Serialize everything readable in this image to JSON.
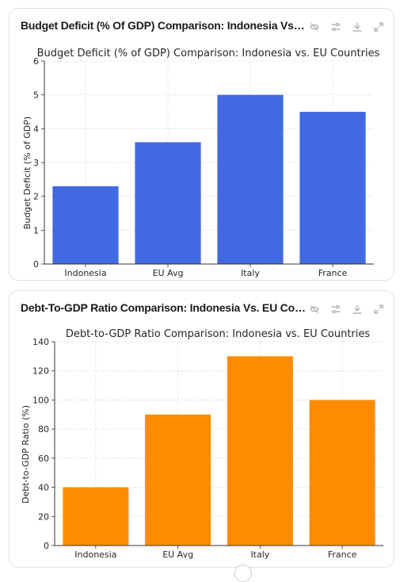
{
  "cards": [
    {
      "header_title": "Budget Deficit (% Of GDP) Comparison: Indonesia Vs. EU Countries"
    },
    {
      "header_title": "Debt-To-GDP Ratio Comparison: Indonesia Vs. EU Countries"
    }
  ],
  "icons": {
    "hide": "eye-slash-icon",
    "settings": "sliders-icon",
    "download": "download-icon",
    "expand": "expand-icon"
  },
  "chart_data": [
    {
      "type": "bar",
      "title": "Budget Deficit (% of GDP) Comparison: Indonesia vs. EU Countries",
      "xlabel": "",
      "ylabel": "Budget Deficit (% of GDP)",
      "categories": [
        "Indonesia",
        "EU Avg",
        "Italy",
        "France"
      ],
      "values": [
        2.3,
        3.6,
        5.0,
        4.5
      ],
      "ylim": [
        0,
        6
      ],
      "yticks": [
        "0",
        "1",
        "2",
        "3",
        "4",
        "5",
        "6"
      ],
      "grid": true,
      "color": "#4169e1"
    },
    {
      "type": "bar",
      "title": "Debt-to-GDP Ratio Comparison: Indonesia vs. EU Countries",
      "xlabel": "",
      "ylabel": "Debt-to-GDP Ratio (%)",
      "categories": [
        "Indonesia",
        "EU Avg",
        "Italy",
        "France"
      ],
      "values": [
        40,
        90,
        130,
        100
      ],
      "ylim": [
        0,
        140
      ],
      "yticks": [
        "0",
        "20",
        "40",
        "60",
        "80",
        "100",
        "120",
        "140"
      ],
      "grid": true,
      "color": "#ff8c00"
    }
  ]
}
